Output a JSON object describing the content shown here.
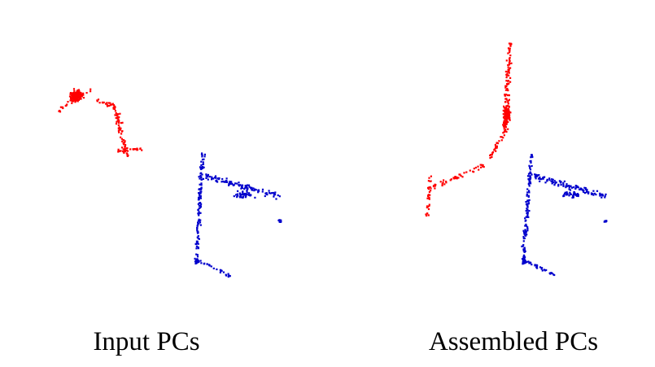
{
  "colors": {
    "part_a": "#ff0000",
    "part_b": "#0000cc",
    "background": "#ffffff"
  },
  "captions": {
    "left": "Input PCs",
    "right": "Assembled PCs"
  }
}
